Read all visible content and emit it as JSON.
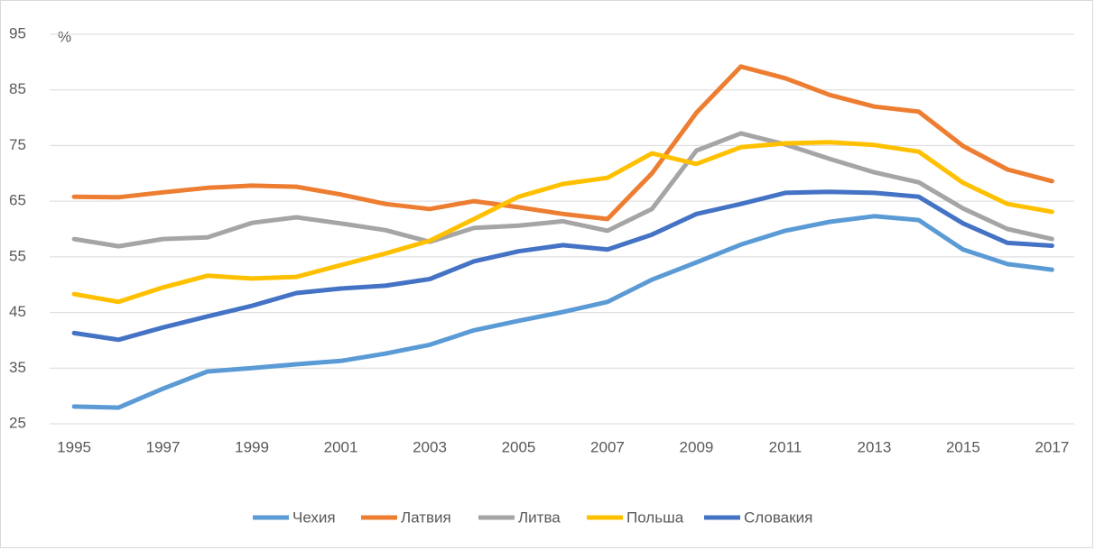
{
  "chart_data": {
    "type": "line",
    "y_unit": "%",
    "x": [
      1995,
      1996,
      1997,
      1998,
      1999,
      2000,
      2001,
      2002,
      2003,
      2004,
      2005,
      2006,
      2007,
      2008,
      2009,
      2010,
      2011,
      2012,
      2013,
      2014,
      2015,
      2016,
      2017
    ],
    "xlim": [
      1994.45,
      2017.5
    ],
    "xticks": [
      1995,
      1997,
      1999,
      2001,
      2003,
      2005,
      2007,
      2009,
      2011,
      2013,
      2015,
      2017
    ],
    "ylim": [
      25,
      95
    ],
    "yticks": [
      25,
      35,
      45,
      55,
      65,
      75,
      85,
      95
    ],
    "grid": true,
    "legend": "bottom",
    "series": [
      {
        "name": "Чехия",
        "color": "#5b9bd5",
        "values": [
          28.1,
          27.9,
          31.3,
          34.4,
          35.0,
          35.7,
          36.3,
          37.6,
          39.2,
          41.8,
          43.5,
          45.1,
          46.9,
          50.9,
          54.0,
          57.2,
          59.7,
          61.3,
          62.3,
          61.6,
          56.3,
          53.7,
          52.7
        ]
      },
      {
        "name": "Латвия",
        "color": "#ed7d31",
        "values": [
          65.8,
          65.7,
          66.6,
          67.4,
          67.8,
          67.6,
          66.2,
          64.5,
          63.6,
          65.0,
          63.9,
          62.7,
          61.8,
          70.0,
          80.9,
          89.2,
          87.1,
          84.1,
          82.0,
          81.1,
          74.9,
          70.7,
          68.6
        ]
      },
      {
        "name": "Литва",
        "color": "#a5a5a5",
        "values": [
          58.2,
          56.9,
          58.2,
          58.5,
          61.1,
          62.1,
          61.0,
          59.8,
          57.7,
          60.2,
          60.6,
          61.4,
          59.7,
          63.6,
          74.1,
          77.2,
          75.2,
          72.6,
          70.2,
          68.4,
          63.7,
          60.0,
          58.2
        ]
      },
      {
        "name": "Польша",
        "color": "#ffc000",
        "values": [
          48.3,
          46.9,
          49.5,
          51.6,
          51.1,
          51.4,
          53.5,
          55.6,
          57.9,
          61.8,
          65.8,
          68.1,
          69.2,
          73.6,
          71.7,
          74.7,
          75.4,
          75.6,
          75.1,
          73.9,
          68.3,
          64.5,
          63.1
        ]
      },
      {
        "name": "Словакия",
        "color": "#4472c4",
        "values": [
          41.3,
          40.1,
          42.3,
          44.3,
          46.2,
          48.5,
          49.3,
          49.8,
          51.0,
          54.2,
          56.0,
          57.1,
          56.3,
          59.0,
          62.7,
          64.5,
          66.5,
          66.7,
          66.5,
          65.8,
          61.0,
          57.5,
          57.0
        ]
      }
    ]
  }
}
